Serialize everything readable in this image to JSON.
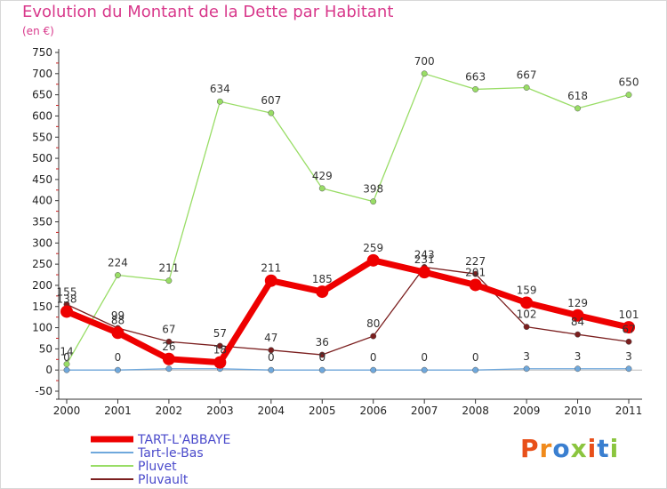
{
  "title": "Evolution du Montant de la Dette par Habitant",
  "subtitle": "(en €)",
  "logo": {
    "text": "Proxiti",
    "colors": [
      "#e8501a",
      "#f08a1c",
      "#3a7fd0",
      "#8bc53f",
      "#e8501a",
      "#3a7fd0",
      "#8bc53f"
    ]
  },
  "chart_data": {
    "type": "line",
    "title": "Evolution du Montant de la Dette par Habitant",
    "xlabel": "",
    "ylabel": "(en €)",
    "x": [
      "2000",
      "2001",
      "2002",
      "2003",
      "2004",
      "2005",
      "2006",
      "2007",
      "2008",
      "2009",
      "2010",
      "2011"
    ],
    "ylim": [
      -50,
      750
    ],
    "yticks": [
      -50,
      0,
      50,
      100,
      150,
      200,
      250,
      300,
      350,
      400,
      450,
      500,
      550,
      600,
      650,
      700,
      750
    ],
    "grid": false,
    "legend_position": "bottom-left",
    "series": [
      {
        "name": "TART-L'ABBAYE",
        "color": "#ee0000",
        "values": [
          138,
          88,
          26,
          18,
          211,
          185,
          259,
          231,
          201,
          159,
          129,
          101
        ],
        "labels": [
          "138",
          "88",
          "26",
          "18",
          "211",
          "185",
          "259",
          "231",
          "201",
          "159",
          "129",
          "101"
        ]
      },
      {
        "name": "Tart-le-Bas",
        "color": "#6fa8dc",
        "values": [
          0,
          0,
          3,
          3,
          0,
          0,
          0,
          0,
          0,
          3,
          3,
          3
        ],
        "labels": [
          "0",
          "0",
          "",
          "",
          "0",
          "0",
          "0",
          "0",
          "0",
          "3",
          "3",
          "3"
        ]
      },
      {
        "name": "Pluvet",
        "color": "#99dd66",
        "values": [
          14,
          224,
          211,
          634,
          607,
          429,
          398,
          700,
          663,
          667,
          618,
          650
        ],
        "labels": [
          "14",
          "224",
          "211",
          "634",
          "607",
          "429",
          "398",
          "700",
          "663",
          "667",
          "618",
          "650"
        ]
      },
      {
        "name": "Pluvault",
        "color": "#7b1f1f",
        "values": [
          155,
          99,
          67,
          57,
          47,
          36,
          80,
          243,
          227,
          102,
          84,
          67
        ],
        "labels": [
          "155",
          "99",
          "67",
          "57",
          "47",
          "36",
          "80",
          "243",
          "227",
          "102",
          "84",
          "67"
        ]
      }
    ]
  }
}
